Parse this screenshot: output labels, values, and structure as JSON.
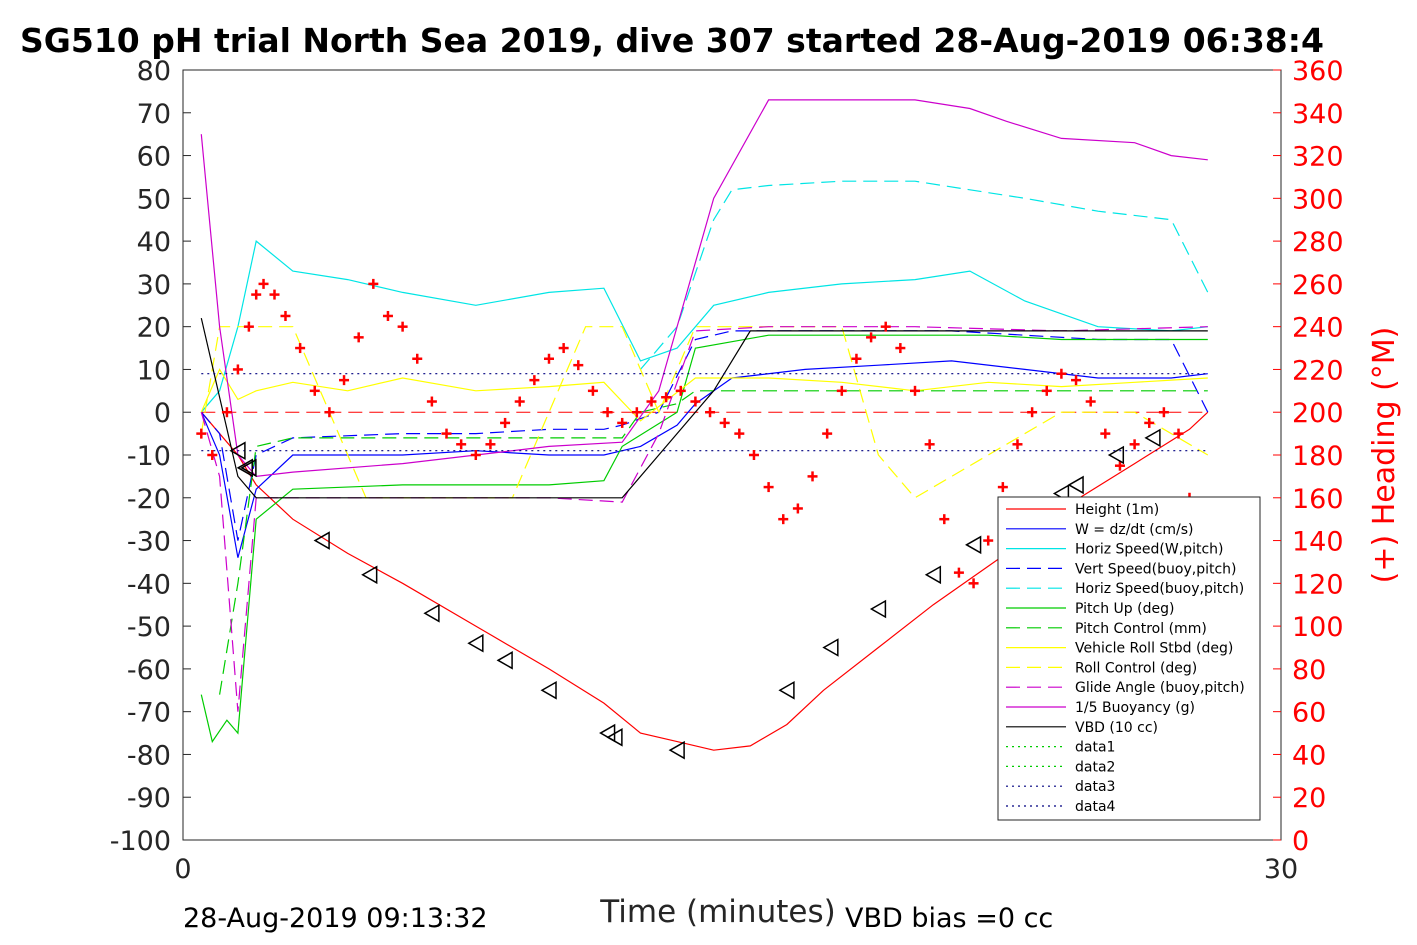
{
  "chart_data": {
    "type": "line",
    "title": "SG510 pH trial North Sea 2019, dive 307 started 28-Aug-2019 06:38:4",
    "xlabel": "Time (minutes)",
    "ylabel": "",
    "y2label": "(+) Heading (°M)",
    "xlim": [
      0,
      30
    ],
    "ylim": [
      -100,
      80
    ],
    "y2lim": [
      0,
      360
    ],
    "x_ticks": [
      "0",
      "30"
    ],
    "y_ticks": [
      "80",
      "70",
      "60",
      "50",
      "40",
      "30",
      "20",
      "10",
      "0",
      "-10",
      "-20",
      "-30",
      "-40",
      "-50",
      "-60",
      "-70",
      "-80",
      "-90",
      "-100"
    ],
    "y2_ticks": [
      "360",
      "340",
      "320",
      "300",
      "280",
      "260",
      "240",
      "220",
      "200",
      "180",
      "160",
      "140",
      "120",
      "100",
      "80",
      "60",
      "40",
      "20",
      "0"
    ],
    "footer_left": "28-Aug-2019 09:13:32",
    "footer_right": "VBD bias =0 cc",
    "legend_position": "bottom-right",
    "grid": false,
    "series": [
      {
        "name": "Height (1m)",
        "color": "#ff0000",
        "style": "solid",
        "x": [
          0.5,
          1.5,
          2.0,
          3.0,
          4.5,
          6.0,
          8.0,
          10.0,
          11.5,
          12.5,
          13.5,
          14.5,
          15.5,
          16.5,
          17.5,
          19.0,
          20.5,
          22.0,
          23.0,
          24.5,
          26.0,
          27.5,
          28.0
        ],
        "y": [
          0,
          -10,
          -17,
          -25,
          -33,
          -40,
          -50,
          -60,
          -68,
          -75,
          -77,
          -79,
          -78,
          -73,
          -65,
          -55,
          -45,
          -36,
          -30,
          -20,
          -12,
          -4,
          0
        ]
      },
      {
        "name": "W = dz/dt (cm/s)",
        "color": "#0000ff",
        "style": "solid",
        "x": [
          0.5,
          1.0,
          1.5,
          2.0,
          3.0,
          6.0,
          8.0,
          10.0,
          11.5,
          12.0,
          12.5,
          13.5,
          14.0,
          15.0,
          17.0,
          19.0,
          21.0,
          23.0,
          25.0,
          27.0,
          28.0
        ],
        "y": [
          0,
          -10,
          -34,
          -18,
          -10,
          -10,
          -9,
          -10,
          -10,
          -9,
          -8,
          -3,
          2,
          8,
          10,
          11,
          12,
          10,
          8,
          8,
          9
        ]
      },
      {
        "name": "Horiz Speed(W,pitch)",
        "color": "#00e5e5",
        "style": "solid",
        "x": [
          0.5,
          1.0,
          1.5,
          2.0,
          3.0,
          4.5,
          6.0,
          8.0,
          10.0,
          11.5,
          12.5,
          13.5,
          14.5,
          16.0,
          18.0,
          20.0,
          21.5,
          23.0,
          25.0,
          27.0,
          28.0
        ],
        "y": [
          0,
          5,
          20,
          40,
          33,
          31,
          28,
          25,
          28,
          29,
          12,
          15,
          25,
          28,
          30,
          31,
          33,
          26,
          20,
          19,
          20
        ]
      },
      {
        "name": "Vert Speed(buoy,pitch)",
        "color": "#0000ff",
        "style": "dashed",
        "x": [
          0.5,
          1.0,
          1.5,
          2.0,
          3.0,
          6.0,
          8.0,
          10.0,
          11.5,
          12.0,
          13.0,
          14.0,
          15.0,
          17.0,
          19.0,
          21.0,
          23.0,
          25.0,
          27.0,
          28.0
        ],
        "y": [
          0,
          -5,
          -30,
          -10,
          -6,
          -5,
          -5,
          -4,
          -4,
          -3,
          0,
          17,
          19,
          19,
          19,
          19,
          18,
          17,
          17,
          0
        ]
      },
      {
        "name": "Horiz Speed(buoy,pitch)",
        "color": "#00e5e5",
        "style": "dashed",
        "x": [
          12.5,
          13.5,
          14.5,
          15.0,
          16.0,
          18.0,
          20.0,
          21.5,
          23.0,
          25.0,
          27.0,
          28.0
        ],
        "y": [
          10,
          20,
          45,
          52,
          53,
          54,
          54,
          52,
          50,
          47,
          45,
          28
        ]
      },
      {
        "name": "Pitch Up (deg)",
        "color": "#00cc00",
        "style": "solid",
        "x": [
          0.5,
          0.8,
          1.2,
          1.5,
          2.0,
          3.0,
          6.0,
          8.0,
          10.0,
          11.5,
          12.0,
          13.5,
          14.0,
          16.0,
          18.0,
          20.0,
          22.0,
          24.0,
          26.0,
          28.0
        ],
        "y": [
          -66,
          -77,
          -72,
          -75,
          -25,
          -18,
          -17,
          -17,
          -17,
          -16,
          -8,
          0,
          15,
          18,
          18,
          18,
          18,
          17,
          17,
          17
        ]
      },
      {
        "name": "Pitch Control (mm)",
        "color": "#00cc00",
        "style": "dashed",
        "x": [
          1.0,
          1.5,
          2.0,
          3.0,
          6.0,
          10.0,
          12.0,
          12.5,
          13.5,
          14.0,
          16.0,
          20.0,
          24.0,
          28.0
        ],
        "y": [
          -66,
          -40,
          -8,
          -6,
          -6,
          -6,
          -6,
          0,
          2,
          5,
          5,
          5,
          5,
          5
        ]
      },
      {
        "name": "Vehicle Roll Stbd (deg)",
        "color": "#ffff00",
        "style": "solid",
        "x": [
          0.5,
          1.0,
          1.5,
          2.0,
          3.0,
          4.5,
          6.0,
          8.0,
          10.0,
          11.5,
          12.5,
          14.0,
          16.0,
          18.0,
          20.0,
          22.0,
          24.0,
          26.0,
          28.0
        ],
        "y": [
          0,
          10,
          3,
          5,
          7,
          5,
          8,
          5,
          6,
          7,
          -2,
          8,
          8,
          7,
          5,
          7,
          6,
          7,
          8
        ]
      },
      {
        "name": "Roll Control (deg)",
        "color": "#ffff00",
        "style": "dashed",
        "x": [
          0.5,
          1.0,
          1.5,
          2.0,
          3.0,
          4.0,
          5.0,
          7.0,
          9.0,
          11.0,
          12.0,
          13.0,
          14.0,
          16.0,
          18.0,
          19.0,
          20.0,
          22.0,
          24.0,
          26.0,
          28.0
        ],
        "y": [
          -5,
          20,
          20,
          20,
          20,
          0,
          -20,
          -20,
          -20,
          20,
          20,
          0,
          20,
          20,
          20,
          -10,
          -20,
          -10,
          0,
          0,
          -10
        ]
      },
      {
        "name": "Glide Angle (buoy,pitch)",
        "color": "#cc00cc",
        "style": "dashed",
        "x": [
          0.5,
          1.0,
          1.5,
          2.0,
          3.0,
          6.0,
          10.0,
          12.0,
          13.0,
          14.0,
          16.0,
          20.0,
          24.0,
          28.0
        ],
        "y": [
          0,
          -15,
          -70,
          -20,
          -20,
          -20,
          -20,
          -21,
          -5,
          19,
          20,
          20,
          19,
          20
        ]
      },
      {
        "name": "1/5 Buoyancy (g)",
        "color": "#cc00cc",
        "style": "solid",
        "x": [
          0.5,
          1.0,
          1.5,
          2.0,
          3.0,
          6.0,
          10.0,
          12.0,
          13.0,
          14.5,
          16.0,
          18.0,
          20.0,
          21.5,
          22.5,
          24.0,
          26.0,
          27.0,
          28.0
        ],
        "y": [
          65,
          20,
          -10,
          -15,
          -14,
          -12,
          -8,
          -7,
          5,
          50,
          73,
          73,
          73,
          71,
          68,
          64,
          63,
          60,
          59
        ]
      },
      {
        "name": "VBD (10 cc)",
        "color": "#000000",
        "style": "solid",
        "x": [
          0.5,
          1.5,
          2.0,
          12.0,
          13.0,
          14.5,
          15.5,
          28.0
        ],
        "y": [
          22,
          -15,
          -20,
          -20,
          -10,
          5,
          19,
          19
        ]
      },
      {
        "name": "data1",
        "color": "#00cc00",
        "style": "dotted",
        "x": [],
        "y": []
      },
      {
        "name": "data2",
        "color": "#00cc00",
        "style": "dotted",
        "x": [],
        "y": []
      },
      {
        "name": "data3",
        "color": "#000080",
        "style": "dotted",
        "x": [
          0.5,
          28.0
        ],
        "y": [
          9,
          9
        ]
      },
      {
        "name": "data4",
        "color": "#000080",
        "style": "dotted",
        "x": [
          0.5,
          28.0
        ],
        "y": [
          -9,
          -9
        ]
      }
    ],
    "heading": {
      "name": "Heading",
      "color": "#ff0000",
      "marker": "+",
      "axis": "right",
      "x": [
        0.5,
        0.8,
        1.2,
        1.5,
        1.8,
        2.0,
        2.2,
        2.5,
        2.8,
        3.2,
        3.6,
        4.0,
        4.4,
        4.8,
        5.2,
        5.6,
        6.0,
        6.4,
        6.8,
        7.2,
        7.6,
        8.0,
        8.4,
        8.8,
        9.2,
        9.6,
        10.0,
        10.4,
        10.8,
        11.2,
        11.6,
        12.0,
        12.4,
        12.8,
        13.2,
        13.6,
        14.0,
        14.4,
        14.8,
        15.2,
        15.6,
        16.0,
        16.4,
        16.8,
        17.2,
        17.6,
        18.0,
        18.4,
        18.8,
        19.2,
        19.6,
        20.0,
        20.4,
        20.8,
        21.2,
        21.6,
        22.0,
        22.4,
        22.8,
        23.2,
        23.6,
        24.0,
        24.4,
        24.8,
        25.2,
        25.6,
        26.0,
        26.4,
        26.8,
        27.2,
        27.5
      ],
      "y": [
        190,
        180,
        200,
        220,
        240,
        255,
        260,
        255,
        245,
        230,
        210,
        200,
        215,
        235,
        260,
        245,
        240,
        225,
        205,
        190,
        185,
        180,
        185,
        195,
        205,
        215,
        225,
        230,
        222,
        210,
        200,
        195,
        200,
        205,
        207,
        210,
        205,
        200,
        195,
        190,
        180,
        165,
        150,
        155,
        170,
        190,
        210,
        225,
        235,
        240,
        230,
        210,
        185,
        150,
        125,
        120,
        140,
        165,
        185,
        200,
        210,
        218,
        215,
        205,
        190,
        175,
        185,
        195,
        200,
        190,
        160
      ]
    },
    "depth_markers": {
      "marker": "triangle-left",
      "color": "#000000",
      "x": [
        1.5,
        1.7,
        1.8,
        3.8,
        5.1,
        6.8,
        8.0,
        8.8,
        10.0,
        11.6,
        11.8,
        13.5,
        16.5,
        17.7,
        19.0,
        20.5,
        21.6,
        24.0,
        24.4,
        25.5,
        26.5
      ],
      "y": [
        -9,
        -13,
        -13,
        -30,
        -38,
        -47,
        -54,
        -58,
        -65,
        -75,
        -76,
        -79,
        -65,
        -55,
        -46,
        -38,
        -31,
        -19,
        -17,
        -10,
        -6
      ]
    }
  }
}
